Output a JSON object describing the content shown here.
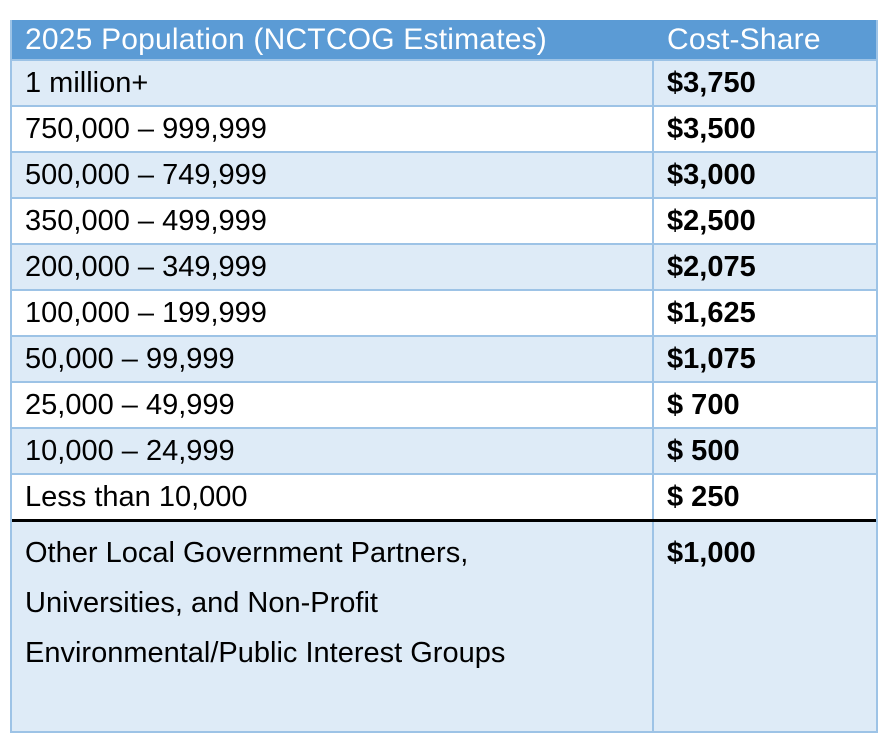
{
  "table": {
    "columns": [
      {
        "label": "2025 Population (NCTCOG Estimates)"
      },
      {
        "label": "Cost-Share"
      }
    ],
    "rows": [
      {
        "population": "1 million+",
        "cost": "$3,750"
      },
      {
        "population": "750,000 – 999,999",
        "cost": "$3,500"
      },
      {
        "population": "500,000 – 749,999",
        "cost": "$3,000"
      },
      {
        "population": "350,000 – 499,999",
        "cost": "$2,500"
      },
      {
        "population": "200,000 – 349,999",
        "cost": "$2,075"
      },
      {
        "population": "100,000 – 199,999",
        "cost": "$1,625"
      },
      {
        "population": "50,000 – 99,999",
        "cost": "$1,075"
      },
      {
        "population": "25,000 – 49,999",
        "cost": "$ 700"
      },
      {
        "population": "10,000 – 24,999",
        "cost": "$ 500"
      },
      {
        "population": "Less than 10,000",
        "cost": "$ 250"
      },
      {
        "population": "Other Local Government Partners, Universities, and Non-Profit Environmental/Public Interest Groups",
        "cost": "$1,000"
      }
    ],
    "colors": {
      "header_bg": "#5B9BD5",
      "header_text": "#FFFFFF",
      "row_alt_bg": "#DEEBF7",
      "row_bg": "#FFFFFF",
      "border": "#9DC3E6",
      "thick_divider": "#000000",
      "text": "#000000"
    }
  }
}
